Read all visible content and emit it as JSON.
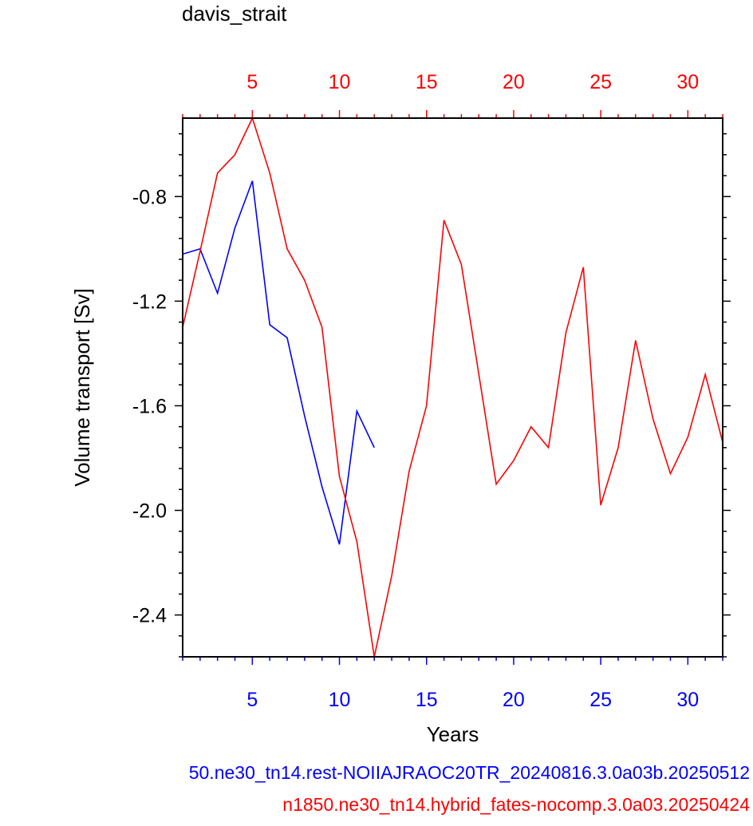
{
  "chart_data": {
    "type": "line",
    "title": "davis_strait",
    "xlabel": "Years",
    "ylabel": "Volume transport [Sv]",
    "xlim": [
      1,
      32
    ],
    "ylim": [
      -2.56,
      -0.5
    ],
    "x_ticks": [
      5,
      10,
      15,
      20,
      25,
      30
    ],
    "y_ticks": [
      -0.8,
      -1.2,
      -1.6,
      -2.0,
      -2.4
    ],
    "y_tick_labels": [
      "-0.8",
      "-1.2",
      "-1.6",
      "-2.0",
      "-2.4"
    ],
    "top_axis_color": "#ff0000",
    "bottom_axis_color": "#0000ff",
    "series": [
      {
        "name": "50.ne30_tn14.rest-NOIIAJRAOC20TR_20240816.3.0a03b.20250512",
        "color": "#0000ff",
        "x": [
          1,
          2,
          3,
          4,
          5,
          6,
          7,
          8,
          9,
          10,
          11,
          12
        ],
        "y": [
          -1.02,
          -1.0,
          -1.17,
          -0.92,
          -0.74,
          -1.29,
          -1.34,
          -1.64,
          -1.91,
          -2.13,
          -1.62,
          -1.76
        ]
      },
      {
        "name": "n1850.ne30_tn14.hybrid_fates-nocomp.3.0a03.20250424",
        "color": "#ff0000",
        "x": [
          1,
          2,
          3,
          4,
          5,
          6,
          7,
          8,
          9,
          10,
          11,
          12,
          13,
          14,
          15,
          16,
          17,
          18,
          19,
          20,
          21,
          22,
          23,
          24,
          25,
          26,
          27,
          28,
          29,
          30,
          31,
          32
        ],
        "y": [
          -1.3,
          -1.01,
          -0.71,
          -0.64,
          -0.5,
          -0.71,
          -1.0,
          -1.12,
          -1.3,
          -1.87,
          -2.12,
          -2.56,
          -2.25,
          -1.85,
          -1.6,
          -0.89,
          -1.06,
          -1.48,
          -1.9,
          -1.81,
          -1.68,
          -1.76,
          -1.32,
          -1.07,
          -1.98,
          -1.76,
          -1.35,
          -1.65,
          -1.86,
          -1.72,
          -1.48,
          -1.74
        ]
      }
    ]
  }
}
